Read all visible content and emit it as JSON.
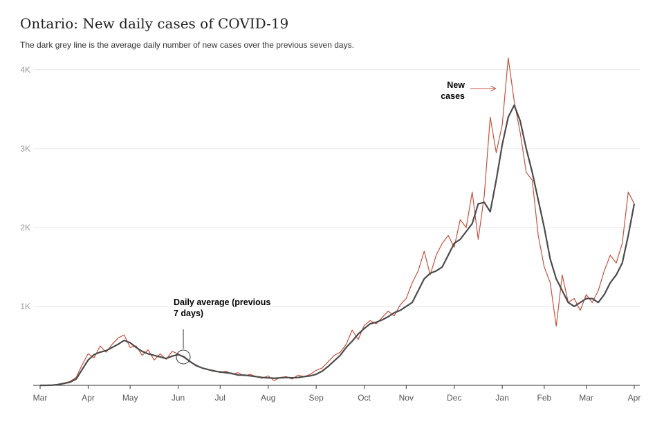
{
  "chart_data": {
    "type": "line",
    "title": "Ontario: New daily cases of COVID-19",
    "subtitle": "The dark grey line is the average daily number of new cases over the previous seven days.",
    "categories": [
      "Mar",
      null,
      null,
      null,
      null,
      null,
      null,
      null,
      "Apr",
      null,
      null,
      null,
      null,
      null,
      null,
      "May",
      null,
      null,
      null,
      null,
      null,
      null,
      null,
      "Jun",
      null,
      null,
      null,
      null,
      null,
      null,
      "Jul",
      null,
      null,
      null,
      null,
      null,
      null,
      null,
      "Aug",
      null,
      null,
      null,
      null,
      null,
      null,
      null,
      "Sep",
      null,
      null,
      null,
      null,
      null,
      null,
      null,
      "Oct",
      null,
      null,
      null,
      null,
      null,
      null,
      "Nov",
      null,
      null,
      null,
      null,
      null,
      null,
      null,
      "Dec",
      null,
      null,
      null,
      null,
      null,
      null,
      null,
      "Jan",
      null,
      null,
      null,
      null,
      null,
      null,
      "Feb",
      null,
      null,
      null,
      null,
      null,
      null,
      "Mar",
      null,
      null,
      null,
      null,
      null,
      null,
      null,
      "Apr"
    ],
    "series": [
      {
        "name": "New cases",
        "color": "#c8503e",
        "width": 1.2,
        "values": [
          0,
          0,
          3,
          15,
          30,
          50,
          100,
          260,
          400,
          350,
          500,
          420,
          520,
          600,
          640,
          480,
          500,
          380,
          450,
          320,
          400,
          330,
          430,
          400,
          350,
          300,
          260,
          220,
          200,
          190,
          160,
          180,
          140,
          160,
          120,
          140,
          110,
          90,
          120,
          60,
          100,
          110,
          80,
          130,
          110,
          140,
          190,
          220,
          300,
          380,
          420,
          520,
          700,
          580,
          760,
          820,
          780,
          860,
          940,
          880,
          1020,
          1100,
          1300,
          1450,
          1700,
          1400,
          1650,
          1800,
          1900,
          1750,
          2100,
          2000,
          2450,
          1850,
          2400,
          3400,
          2950,
          3300,
          4150,
          3600,
          3200,
          2700,
          2600,
          1900,
          1500,
          1300,
          750,
          1400,
          1050,
          1100,
          950,
          1150,
          1050,
          1200,
          1450,
          1650,
          1550,
          1800,
          2450,
          2300
        ]
      },
      {
        "name": "Daily average (previous 7 days)",
        "color": "#4a4a4a",
        "width": 2.2,
        "values": [
          0,
          0,
          2,
          10,
          25,
          40,
          80,
          200,
          320,
          390,
          420,
          440,
          480,
          520,
          570,
          540,
          480,
          430,
          400,
          380,
          360,
          340,
          370,
          390,
          360,
          300,
          250,
          220,
          200,
          180,
          170,
          160,
          150,
          130,
          130,
          120,
          110,
          100,
          95,
          90,
          95,
          100,
          95,
          100,
          110,
          120,
          140,
          180,
          240,
          310,
          380,
          480,
          560,
          650,
          720,
          780,
          800,
          830,
          870,
          920,
          950,
          1000,
          1050,
          1200,
          1350,
          1420,
          1450,
          1500,
          1650,
          1800,
          1850,
          1950,
          2050,
          2300,
          2320,
          2200,
          2600,
          3050,
          3400,
          3550,
          3350,
          3000,
          2700,
          2350,
          2000,
          1600,
          1350,
          1200,
          1050,
          1000,
          1050,
          1100,
          1100,
          1050,
          1150,
          1300,
          1400,
          1550,
          1900,
          2300
        ]
      }
    ],
    "ylim": [
      0,
      4200
    ],
    "yticks": [
      {
        "value": 1000,
        "label": "1K"
      },
      {
        "value": 2000,
        "label": "2K"
      },
      {
        "value": 3000,
        "label": "3K"
      },
      {
        "value": 4000,
        "label": "4K"
      }
    ],
    "grid": true,
    "annotations": [
      {
        "lines": [
          "New",
          "cases"
        ]
      },
      {
        "lines": [
          "Daily average (previous",
          "7 days)"
        ]
      }
    ]
  }
}
